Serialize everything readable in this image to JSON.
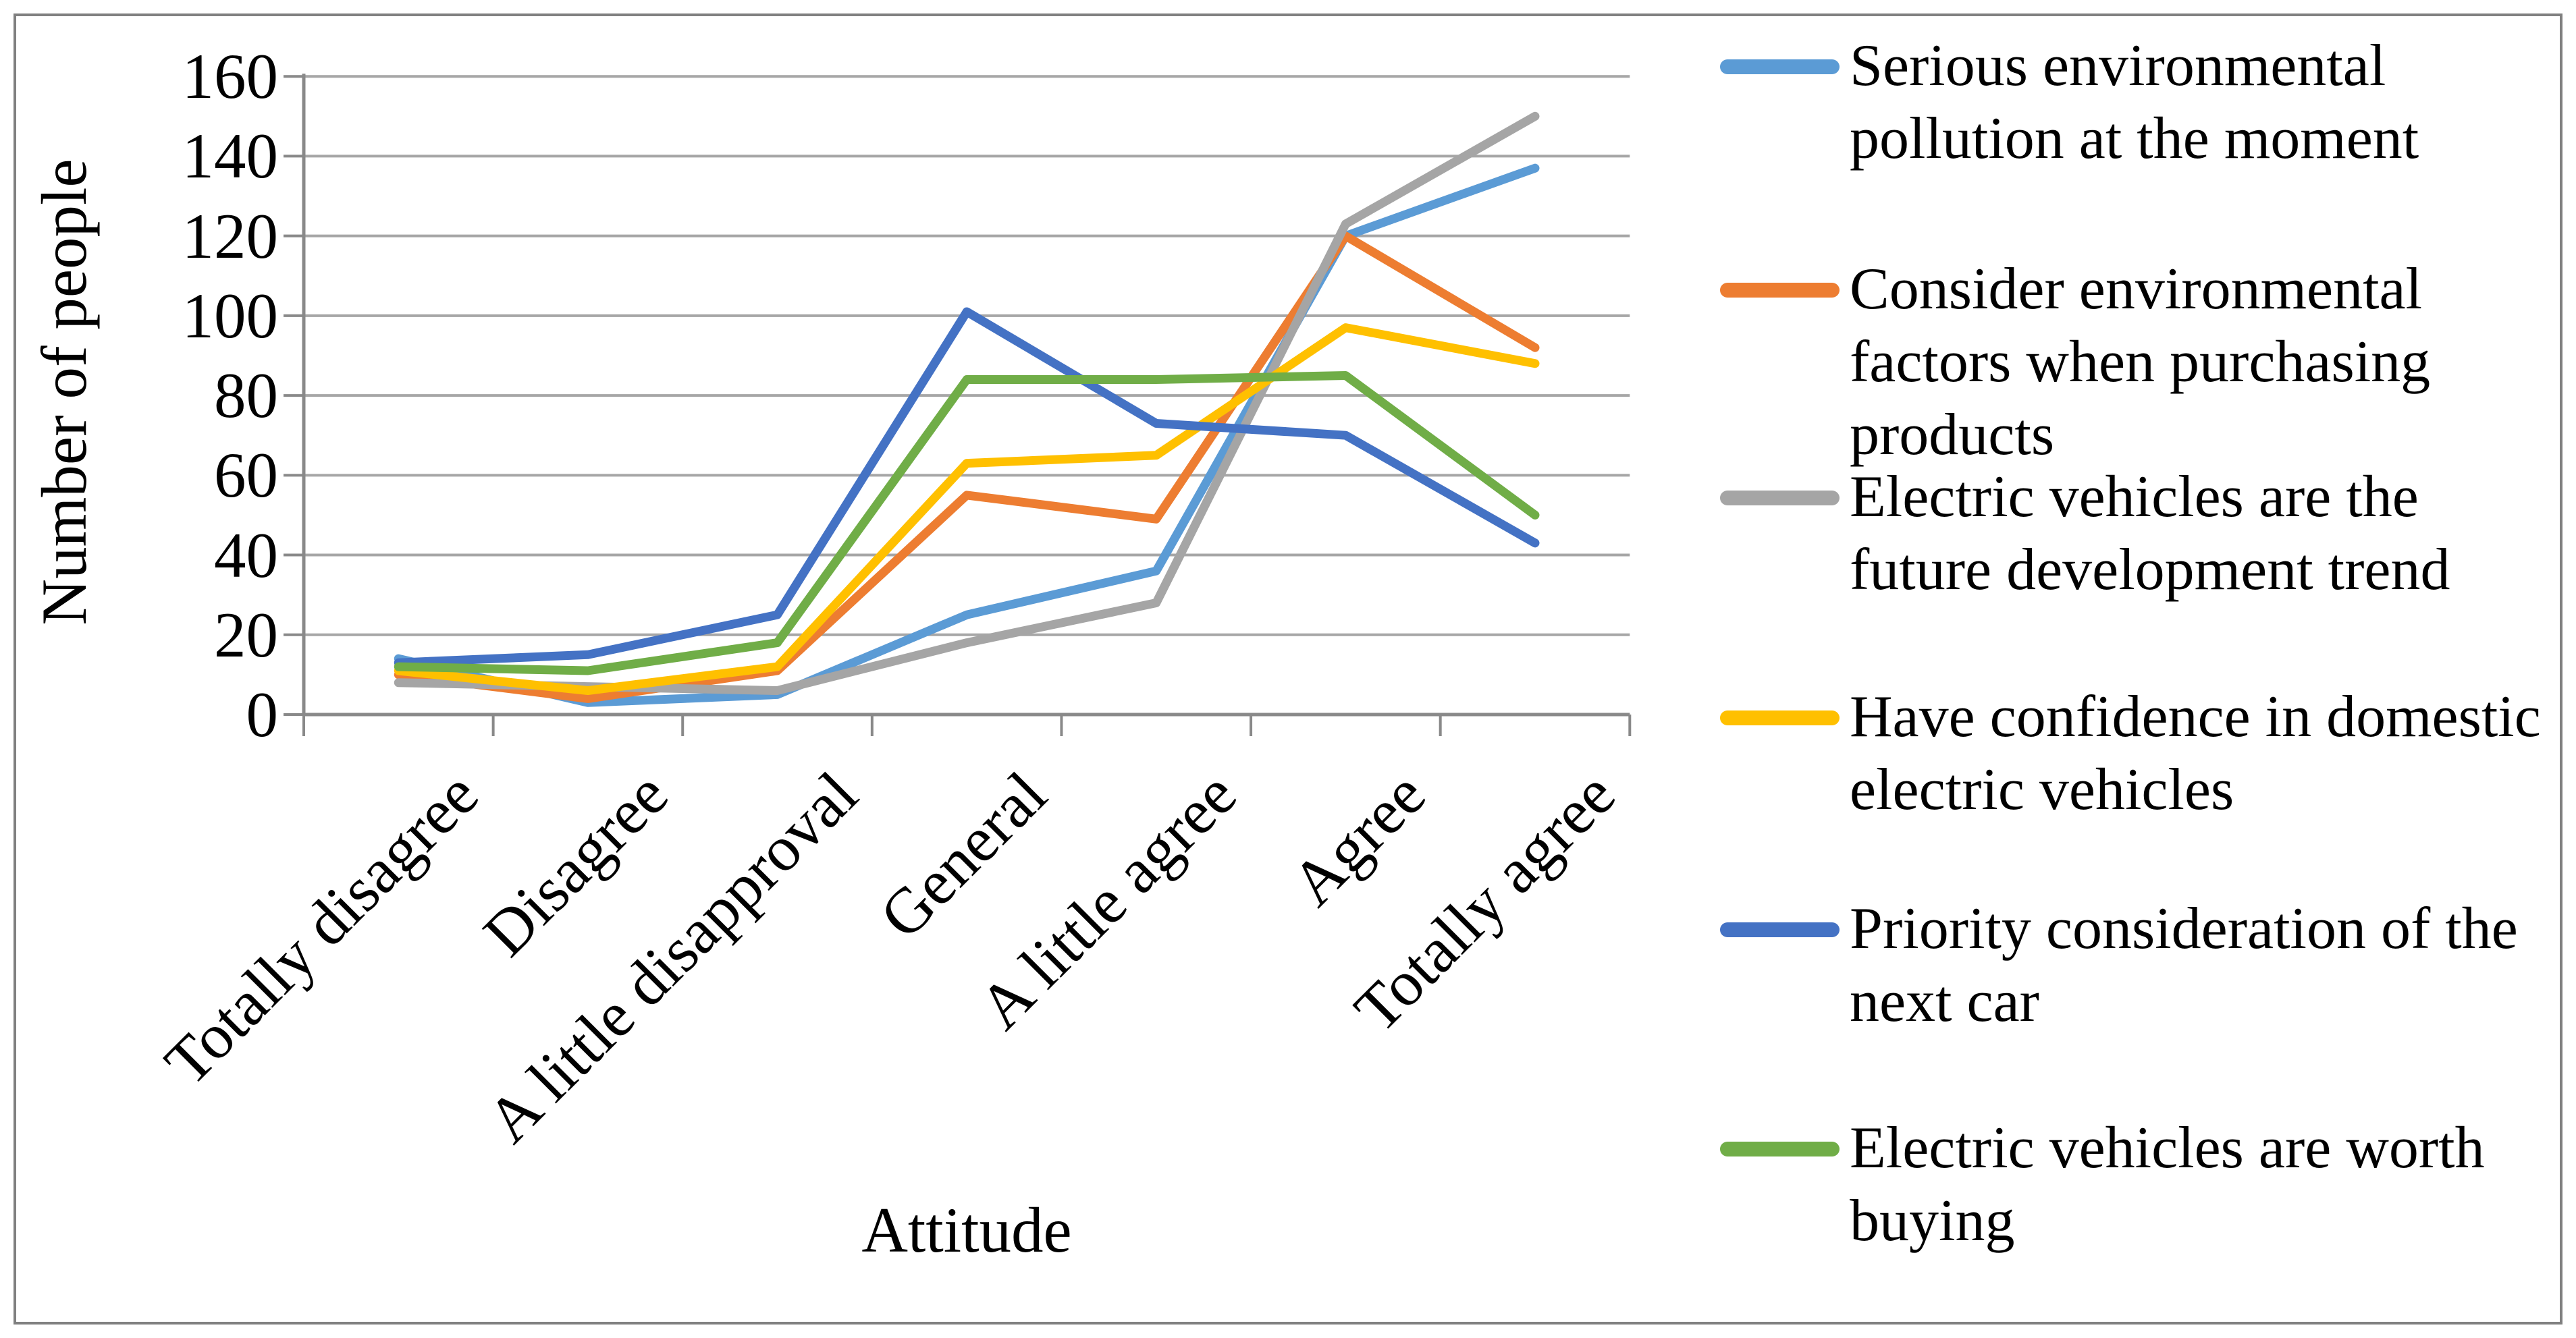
{
  "chart_data": {
    "type": "line",
    "title": "",
    "xlabel": "Attitude",
    "ylabel": "Number of people",
    "ylim": [
      0,
      160
    ],
    "yticks": [
      0,
      20,
      40,
      60,
      80,
      100,
      120,
      140,
      160
    ],
    "grid": "horizontal",
    "legend_position": "right",
    "categories": [
      "Totally disagree",
      "Disagree",
      "A little disapproval",
      "General",
      "A little agree",
      "Agree",
      "Totally agree"
    ],
    "series": [
      {
        "name": "Serious environmental pollution at the moment",
        "legend_lines": [
          "Serious environmental",
          "pollution at the moment"
        ],
        "color": "#5B9BD5",
        "values": [
          14,
          3,
          5,
          25,
          36,
          120,
          137
        ]
      },
      {
        "name": "Consider environmental factors when purchasing products",
        "legend_lines": [
          "Consider environmental",
          "factors when purchasing",
          "products"
        ],
        "color": "#ED7D31",
        "values": [
          10,
          4,
          11,
          55,
          49,
          120,
          92
        ]
      },
      {
        "name": "Electric vehicles are the future development trend",
        "legend_lines": [
          "Electric vehicles are the",
          "future development trend"
        ],
        "color": "#A5A5A5",
        "values": [
          8,
          7,
          6,
          18,
          28,
          123,
          150
        ]
      },
      {
        "name": "Have confidence in domestic electric vehicles",
        "legend_lines": [
          "Have confidence in domestic",
          "electric vehicles"
        ],
        "color": "#FFC000",
        "values": [
          11,
          6,
          12,
          63,
          65,
          97,
          88
        ]
      },
      {
        "name": "Priority consideration of the next car",
        "legend_lines": [
          "Priority consideration of the",
          "next car"
        ],
        "color": "#4472C4",
        "values": [
          13,
          15,
          25,
          101,
          73,
          70,
          43
        ]
      },
      {
        "name": "Electric vehicles are worth buying",
        "legend_lines": [
          "Electric vehicles are worth",
          "buying"
        ],
        "color": "#70AD47",
        "values": [
          12,
          11,
          18,
          84,
          84,
          85,
          50
        ]
      }
    ]
  },
  "colors": {
    "background": "#FFFFFF",
    "frame": "#808080",
    "gridline": "#A6A6A6",
    "axis": "#898989",
    "text": "#000000"
  }
}
